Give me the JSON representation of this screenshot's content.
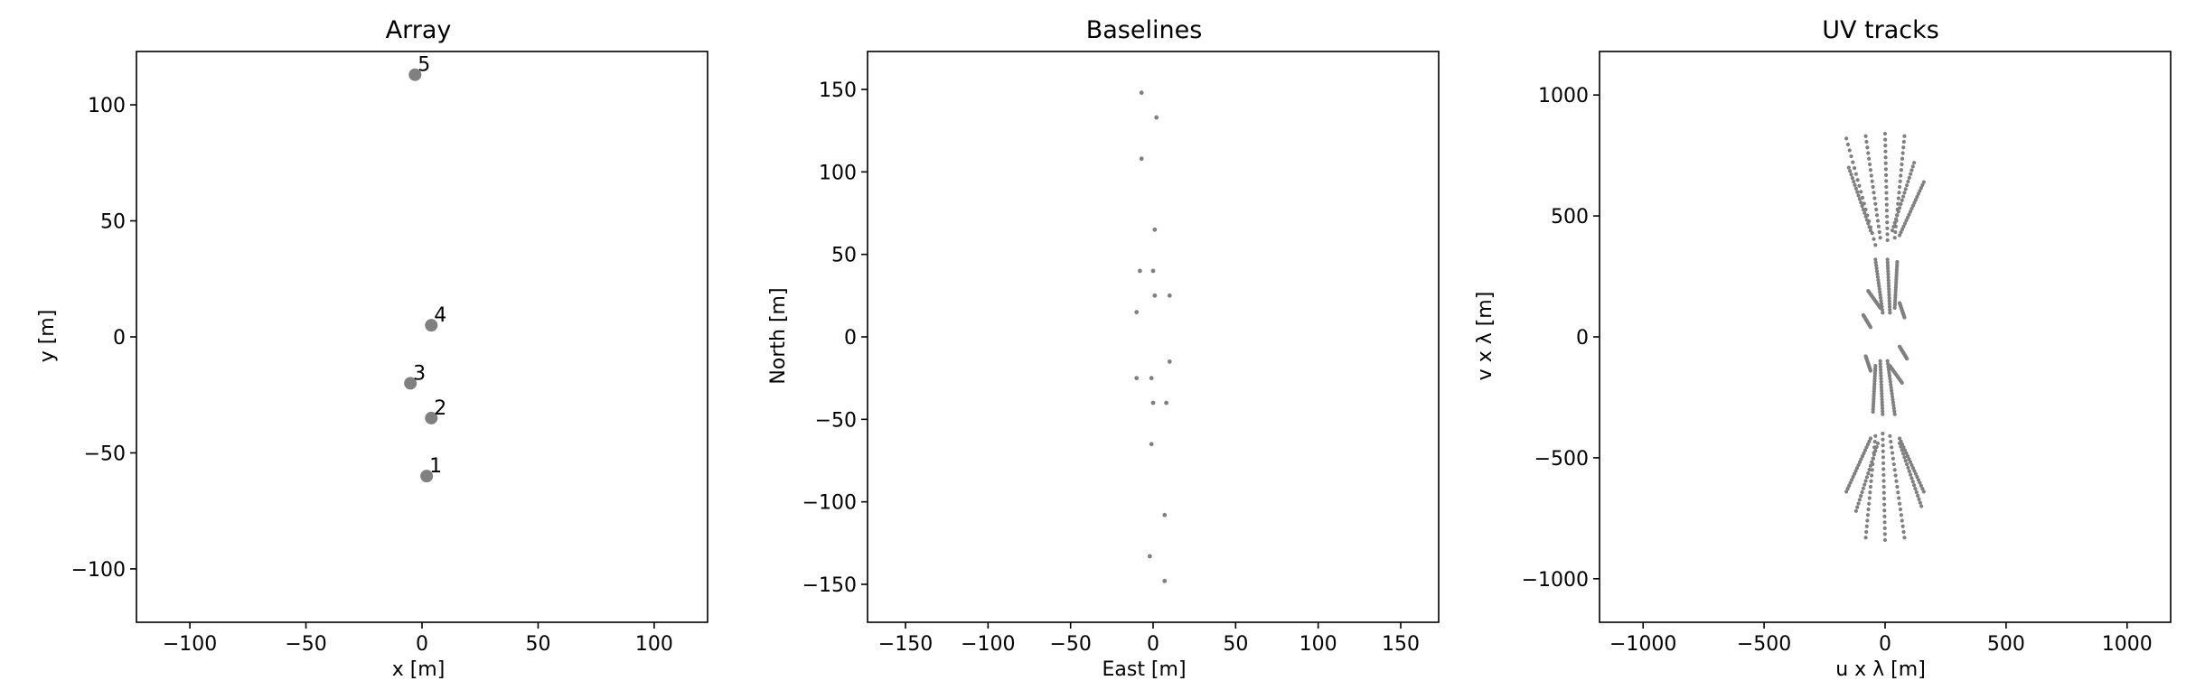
{
  "chart_data": [
    {
      "type": "scatter",
      "title": "Array",
      "xlabel": "x [m]",
      "ylabel": "y [m]",
      "xlim": [
        -123,
        123
      ],
      "ylim": [
        -123,
        123
      ],
      "xticks": [
        -100,
        -50,
        0,
        50,
        100
      ],
      "yticks": [
        -100,
        -50,
        0,
        50,
        100
      ],
      "xtick_labels": [
        "−100",
        "−50",
        "0",
        "50",
        "100"
      ],
      "ytick_labels": [
        "−100",
        "−50",
        "0",
        "50",
        "100"
      ],
      "grid": false,
      "marker_color": "#808080",
      "points": [
        {
          "label": "1",
          "x": 2,
          "y": -60
        },
        {
          "label": "2",
          "x": 4,
          "y": -35
        },
        {
          "label": "3",
          "x": -5,
          "y": -20
        },
        {
          "label": "4",
          "x": 4,
          "y": 5
        },
        {
          "label": "5",
          "x": -3,
          "y": 113
        }
      ]
    },
    {
      "type": "scatter",
      "title": "Baselines",
      "xlabel": "East [m]",
      "ylabel": "North [m]",
      "xlim": [
        -173,
        173
      ],
      "ylim": [
        -173,
        173
      ],
      "xticks": [
        -150,
        -100,
        -50,
        0,
        50,
        100,
        150
      ],
      "yticks": [
        -150,
        -100,
        -50,
        0,
        50,
        100,
        150
      ],
      "xtick_labels": [
        "−150",
        "−100",
        "−50",
        "0",
        "50",
        "100",
        "150"
      ],
      "ytick_labels": [
        "−150",
        "−100",
        "−50",
        "0",
        "50",
        "100",
        "150"
      ],
      "grid": false,
      "marker_color": "#808080",
      "points": [
        {
          "x": -7,
          "y": 148
        },
        {
          "x": 2,
          "y": 133
        },
        {
          "x": -7,
          "y": 108
        },
        {
          "x": 1,
          "y": 65
        },
        {
          "x": -8,
          "y": 40
        },
        {
          "x": 0,
          "y": 40
        },
        {
          "x": 1,
          "y": 25
        },
        {
          "x": 10,
          "y": 25
        },
        {
          "x": -10,
          "y": 15
        },
        {
          "x": 10,
          "y": -15
        },
        {
          "x": -10,
          "y": -25
        },
        {
          "x": -1,
          "y": -25
        },
        {
          "x": 0,
          "y": -40
        },
        {
          "x": 8,
          "y": -40
        },
        {
          "x": -1,
          "y": -65
        },
        {
          "x": 7,
          "y": -108
        },
        {
          "x": -2,
          "y": -133
        },
        {
          "x": 7,
          "y": -148
        }
      ]
    },
    {
      "type": "scatter",
      "title": "UV tracks",
      "xlabel": "u x λ [m]",
      "ylabel": "v x λ [m]",
      "xlim": [
        -1180,
        1180
      ],
      "ylim": [
        -1180,
        1180
      ],
      "xticks": [
        -1000,
        -500,
        0,
        500,
        1000
      ],
      "yticks": [
        -1000,
        -500,
        0,
        500,
        1000
      ],
      "xtick_labels": [
        "−1000",
        "−500",
        "0",
        "500",
        "1000"
      ],
      "ytick_labels": [
        "−1000",
        "−500",
        "0",
        "500",
        "1000"
      ],
      "grid": false,
      "marker_color": "#808080",
      "tracks": [
        {
          "start": [
            -160,
            820
          ],
          "end": [
            -40,
            380
          ]
        },
        {
          "start": [
            -80,
            830
          ],
          "end": [
            -20,
            410
          ]
        },
        {
          "start": [
            0,
            840
          ],
          "end": [
            10,
            400
          ]
        },
        {
          "start": [
            80,
            830
          ],
          "end": [
            40,
            410
          ]
        },
        {
          "start": [
            160,
            640
          ],
          "end": [
            60,
            420
          ]
        },
        {
          "start": [
            -150,
            700
          ],
          "end": [
            -60,
            440
          ]
        },
        {
          "start": [
            120,
            720
          ],
          "end": [
            30,
            440
          ]
        },
        {
          "start": [
            -40,
            320
          ],
          "end": [
            -10,
            100
          ]
        },
        {
          "start": [
            10,
            320
          ],
          "end": [
            20,
            100
          ]
        },
        {
          "start": [
            50,
            310
          ],
          "end": [
            40,
            120
          ]
        },
        {
          "start": [
            -70,
            190
          ],
          "end": [
            -20,
            120
          ]
        },
        {
          "start": [
            60,
            140
          ],
          "end": [
            80,
            80
          ]
        },
        {
          "start": [
            -90,
            90
          ],
          "end": [
            -60,
            40
          ]
        },
        {
          "start": [
            160,
            -640
          ],
          "end": [
            60,
            -420
          ]
        },
        {
          "start": [
            80,
            -830
          ],
          "end": [
            20,
            -410
          ]
        },
        {
          "start": [
            0,
            -840
          ],
          "end": [
            -10,
            -400
          ]
        },
        {
          "start": [
            -80,
            -830
          ],
          "end": [
            -40,
            -410
          ]
        },
        {
          "start": [
            -160,
            -640
          ],
          "end": [
            -60,
            -420
          ]
        },
        {
          "start": [
            150,
            -700
          ],
          "end": [
            60,
            -440
          ]
        },
        {
          "start": [
            -120,
            -720
          ],
          "end": [
            -30,
            -440
          ]
        },
        {
          "start": [
            40,
            -320
          ],
          "end": [
            10,
            -100
          ]
        },
        {
          "start": [
            -10,
            -320
          ],
          "end": [
            -20,
            -100
          ]
        },
        {
          "start": [
            -50,
            -310
          ],
          "end": [
            -40,
            -120
          ]
        },
        {
          "start": [
            70,
            -190
          ],
          "end": [
            20,
            -120
          ]
        },
        {
          "start": [
            -60,
            -140
          ],
          "end": [
            -80,
            -80
          ]
        },
        {
          "start": [
            90,
            -90
          ],
          "end": [
            60,
            -40
          ]
        }
      ]
    }
  ]
}
